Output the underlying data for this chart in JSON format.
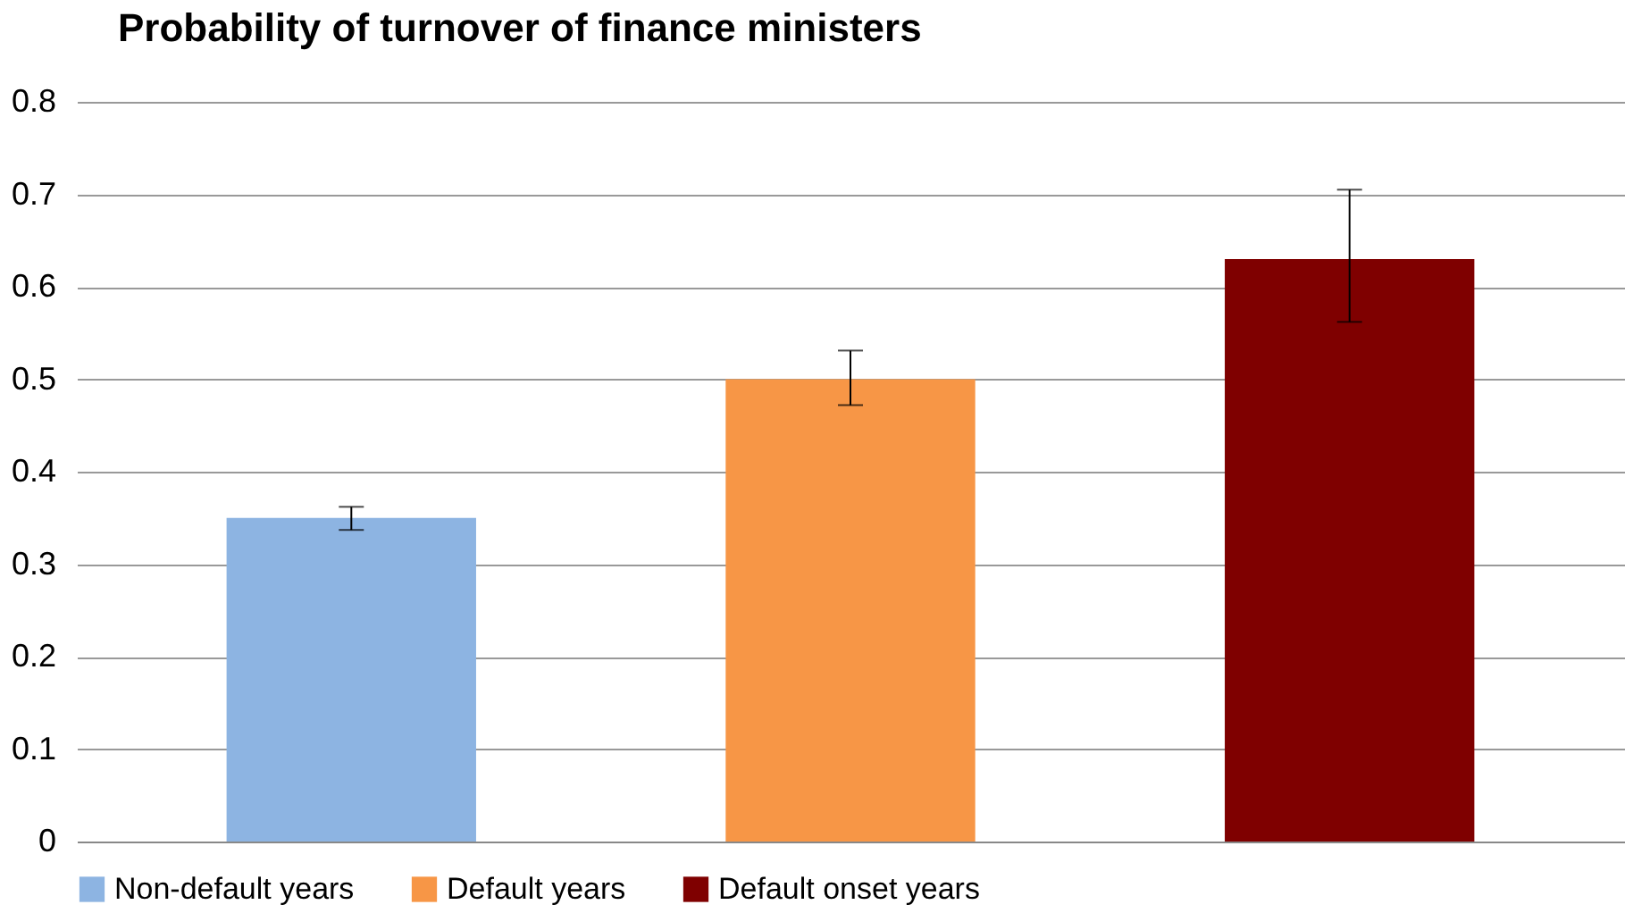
{
  "chart_data": {
    "type": "bar",
    "title": "Probability of turnover of finance ministers",
    "categories": [
      null
    ],
    "series": [
      {
        "name": "Non-default years",
        "color": "#8db4e2",
        "values": [
          0.35
        ],
        "errors": [
          [
            0.337,
            0.362
          ]
        ]
      },
      {
        "name": "Default years",
        "color": "#f79646",
        "values": [
          0.5
        ],
        "errors": [
          [
            0.472,
            0.531
          ]
        ]
      },
      {
        "name": "Default onset years",
        "color": "#7f0000",
        "values": [
          0.63
        ],
        "errors": [
          [
            0.562,
            0.705
          ]
        ]
      }
    ],
    "ylim": [
      0,
      0.8
    ],
    "yticks": [
      0,
      0.1,
      0.2,
      0.3,
      0.4,
      0.5,
      0.6,
      0.7,
      0.8
    ],
    "grid": "y",
    "legend": "bottom",
    "tick_labels": "y"
  }
}
